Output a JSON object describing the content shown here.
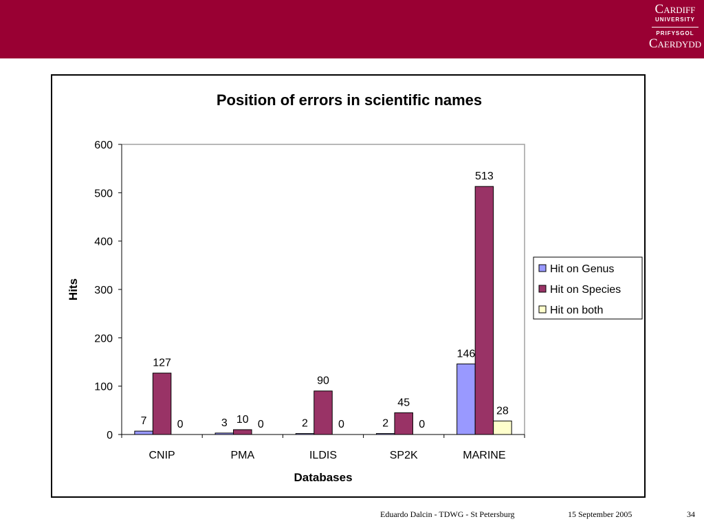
{
  "logo": {
    "line1": "Cardiff",
    "line2": "UNIVERSITY",
    "line3": "PRIFYSGOL",
    "line4": "Caerdydd"
  },
  "footer": {
    "author_event": "Eduardo Dalcin - TDWG - St Petersburg",
    "date": "15 September 2005",
    "page": "34"
  },
  "colors": {
    "header": "#990033",
    "genus": "#9999ff",
    "species": "#993366",
    "both": "#ffffcc"
  },
  "chart_data": {
    "type": "bar",
    "title": "Position of errors in scientific names",
    "xlabel": "Databases",
    "ylabel": "Hits",
    "ylim": [
      0,
      600
    ],
    "yticks": [
      "0",
      "100",
      "200",
      "300",
      "400",
      "500",
      "600"
    ],
    "categories": [
      "CNIP",
      "PMA",
      "ILDIS",
      "SP2K",
      "MARINE"
    ],
    "series": [
      {
        "name": "Hit on Genus",
        "values": [
          7,
          3,
          2,
          2,
          146
        ],
        "labels": [
          "7",
          "3",
          "2",
          "2",
          "146"
        ]
      },
      {
        "name": "Hit on Species",
        "values": [
          127,
          10,
          90,
          45,
          513
        ],
        "labels": [
          "127",
          "10",
          "90",
          "45",
          "513"
        ]
      },
      {
        "name": "Hit on both",
        "values": [
          0,
          0,
          0,
          0,
          28
        ],
        "labels": [
          "0",
          "0",
          "0",
          "0",
          "28"
        ]
      }
    ],
    "legend_position": "right",
    "grid": false
  }
}
